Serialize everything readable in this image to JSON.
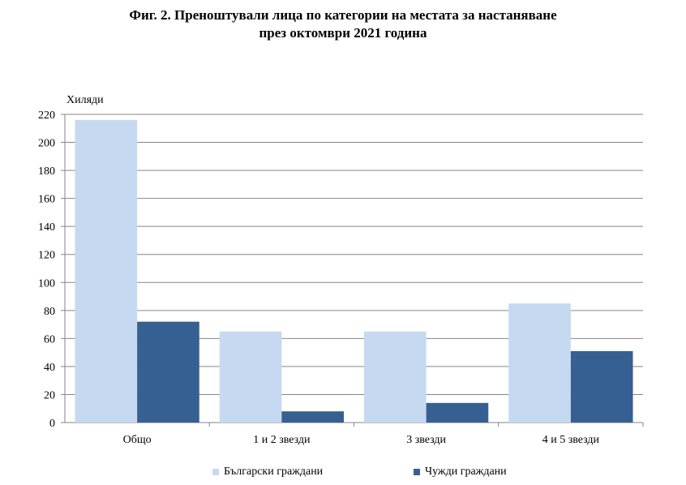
{
  "title": {
    "line1": "Фиг. 2. Преноштувaли лица по категории на местата за настаняване",
    "line2": "през октомври 2021 година"
  },
  "chart_data": {
    "type": "bar",
    "title": "Фиг. 2. Преноштувaли лица по категории на местата за настаняване през октомври 2021 година",
    "ylabel": "Хиляди",
    "xlabel": "",
    "categories": [
      "Общо",
      "1 и 2 звезди",
      "3 звезди",
      "4 и 5 звезди"
    ],
    "series": [
      {
        "name": "Български граждани",
        "color": "#c6d9f1",
        "values": [
          216,
          65,
          65,
          85
        ]
      },
      {
        "name": "Чужди граждани",
        "color": "#376092",
        "values": [
          72,
          8,
          14,
          51
        ]
      }
    ],
    "ylim": [
      0,
      220
    ],
    "yticks": [
      0,
      20,
      40,
      60,
      80,
      100,
      120,
      140,
      160,
      180,
      200,
      220
    ],
    "grid": true,
    "legend_position": "bottom"
  }
}
